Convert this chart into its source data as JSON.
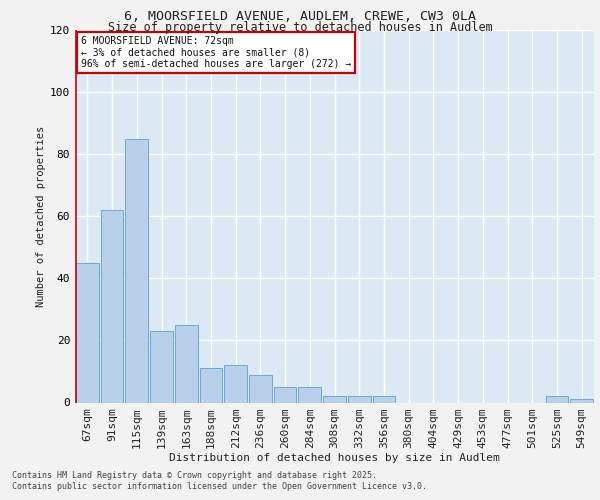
{
  "title_line1": "6, MOORSFIELD AVENUE, AUDLEM, CREWE, CW3 0LA",
  "title_line2": "Size of property relative to detached houses in Audlem",
  "xlabel": "Distribution of detached houses by size in Audlem",
  "ylabel": "Number of detached properties",
  "categories": [
    "67sqm",
    "91sqm",
    "115sqm",
    "139sqm",
    "163sqm",
    "188sqm",
    "212sqm",
    "236sqm",
    "260sqm",
    "284sqm",
    "308sqm",
    "332sqm",
    "356sqm",
    "380sqm",
    "404sqm",
    "429sqm",
    "453sqm",
    "477sqm",
    "501sqm",
    "525sqm",
    "549sqm"
  ],
  "values": [
    45,
    62,
    85,
    23,
    25,
    11,
    12,
    9,
    5,
    5,
    2,
    2,
    2,
    0,
    0,
    0,
    0,
    0,
    0,
    2,
    1
  ],
  "bar_color": "#b8d0ea",
  "bar_edge_color": "#6aaad4",
  "annotation_text": "6 MOORSFIELD AVENUE: 72sqm\n← 3% of detached houses are smaller (8)\n96% of semi-detached houses are larger (272) →",
  "annotation_box_facecolor": "#ffffff",
  "annotation_border_color": "#cc0000",
  "ylim": [
    0,
    120
  ],
  "yticks": [
    0,
    20,
    40,
    60,
    80,
    100,
    120
  ],
  "bg_color": "#dce9f5",
  "grid_color": "#ffffff",
  "fig_facecolor": "#f2f2f2",
  "footer_line1": "Contains HM Land Registry data © Crown copyright and database right 2025.",
  "footer_line2": "Contains public sector information licensed under the Open Government Licence v3.0."
}
